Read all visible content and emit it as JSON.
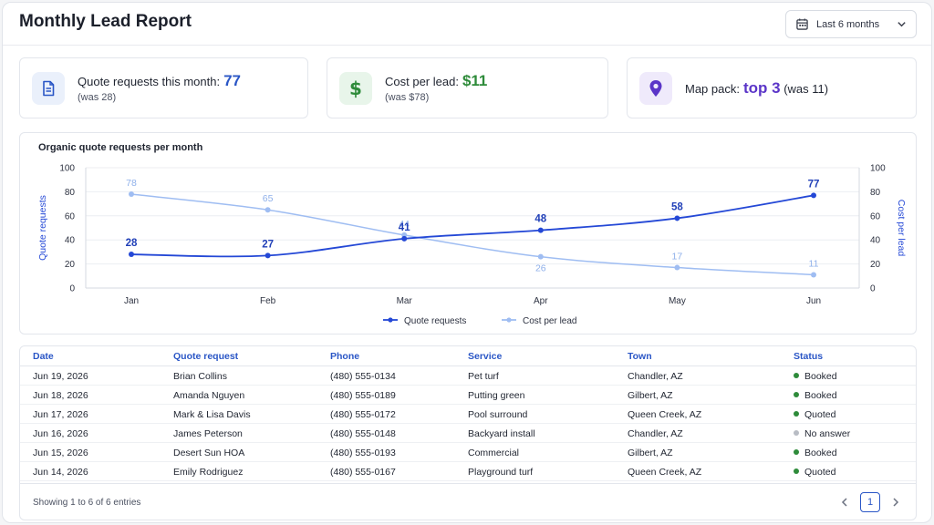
{
  "header": {
    "title": "Monthly Lead Report",
    "range_label": "Last 6 months"
  },
  "kpis": [
    {
      "label": "Quote requests this month:",
      "value": "77",
      "sub": "(was 28)",
      "icon": "document-icon",
      "color": "#2a56c6",
      "bg": "#eaf0fb"
    },
    {
      "label": "Cost per lead:",
      "value": "$11",
      "sub": "(was $78)",
      "icon": "dollar-icon",
      "color": "#2e8b3a",
      "bg": "#e8f5ea"
    },
    {
      "label": "Map pack:",
      "value": "top 3",
      "suffix": "(was 11)",
      "icon": "map-pin-icon",
      "color": "#5b35c8",
      "bg": "#efeafb"
    }
  ],
  "chart_data": {
    "type": "line",
    "title": "Organic quote requests per month",
    "categories": [
      "Jan",
      "Feb",
      "Mar",
      "Apr",
      "May",
      "Jun"
    ],
    "series": [
      {
        "name": "Quote requests",
        "values": [
          28,
          27,
          41,
          48,
          58,
          77
        ],
        "color": "#2448d6",
        "axis": "left"
      },
      {
        "name": "Cost per lead",
        "values": [
          78,
          65,
          44,
          26,
          17,
          11
        ],
        "color": "#9fbdf2",
        "axis": "right"
      }
    ],
    "ylabel": "Quote requests",
    "y2label": "Cost per lead",
    "ylim": [
      0,
      100
    ],
    "y2lim": [
      0,
      100
    ],
    "yticks": [
      0,
      20,
      40,
      60,
      80,
      100
    ],
    "grid": true,
    "legend": "bottom-center"
  },
  "table": {
    "columns": [
      "Date",
      "Quote request",
      "Phone",
      "Service",
      "Town",
      "Status"
    ],
    "rows": [
      {
        "date": "Jun 19, 2026",
        "name": "Brian Collins",
        "phone": "(480) 555-0134",
        "service": "Pet turf",
        "town": "Chandler, AZ",
        "status": "Booked",
        "status_color": "#2e8b3a"
      },
      {
        "date": "Jun 18, 2026",
        "name": "Amanda Nguyen",
        "phone": "(480) 555-0189",
        "service": "Putting green",
        "town": "Gilbert, AZ",
        "status": "Booked",
        "status_color": "#2e8b3a"
      },
      {
        "date": "Jun 17, 2026",
        "name": "Mark & Lisa Davis",
        "phone": "(480) 555-0172",
        "service": "Pool surround",
        "town": "Queen Creek, AZ",
        "status": "Quoted",
        "status_color": "#2e8b3a"
      },
      {
        "date": "Jun 16, 2026",
        "name": "James Peterson",
        "phone": "(480) 555-0148",
        "service": "Backyard install",
        "town": "Chandler, AZ",
        "status": "No answer",
        "status_color": "#b8bcc4"
      },
      {
        "date": "Jun 15, 2026",
        "name": "Desert Sun HOA",
        "phone": "(480) 555-0193",
        "service": "Commercial",
        "town": "Gilbert, AZ",
        "status": "Booked",
        "status_color": "#2e8b3a"
      },
      {
        "date": "Jun 14, 2026",
        "name": "Emily Rodriguez",
        "phone": "(480) 555-0167",
        "service": "Playground turf",
        "town": "Queen Creek, AZ",
        "status": "Quoted",
        "status_color": "#2e8b3a"
      }
    ],
    "footer_info": "Showing 1 to 6 of 6 entries",
    "current_page": "1"
  }
}
